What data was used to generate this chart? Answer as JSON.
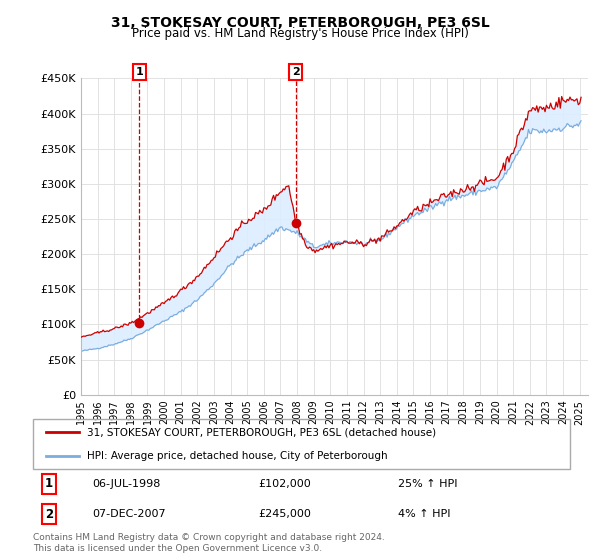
{
  "title": "31, STOKESAY COURT, PETERBOROUGH, PE3 6SL",
  "subtitle": "Price paid vs. HM Land Registry's House Price Index (HPI)",
  "legend_line1": "31, STOKESAY COURT, PETERBOROUGH, PE3 6SL (detached house)",
  "legend_line2": "HPI: Average price, detached house, City of Peterborough",
  "annotation1_date": "06-JUL-1998",
  "annotation1_price": "£102,000",
  "annotation1_hpi": "25% ↑ HPI",
  "annotation2_date": "07-DEC-2007",
  "annotation2_price": "£245,000",
  "annotation2_hpi": "4% ↑ HPI",
  "footer": "Contains HM Land Registry data © Crown copyright and database right 2024.\nThis data is licensed under the Open Government Licence v3.0.",
  "red_color": "#cc0000",
  "blue_color": "#7aade0",
  "fill_color": "#ddeeff",
  "background_color": "#ffffff",
  "grid_color": "#dddddd",
  "ylim": [
    0,
    450000
  ],
  "yticks": [
    0,
    50000,
    100000,
    150000,
    200000,
    250000,
    300000,
    350000,
    400000,
    450000
  ],
  "ytick_labels": [
    "£0",
    "£50K",
    "£100K",
    "£150K",
    "£200K",
    "£250K",
    "£300K",
    "£350K",
    "£400K",
    "£450K"
  ],
  "sale1_x": 1998.5,
  "sale1_y": 102000,
  "sale2_x": 2007.92,
  "sale2_y": 245000,
  "xmin": 1995,
  "xmax": 2025.5
}
